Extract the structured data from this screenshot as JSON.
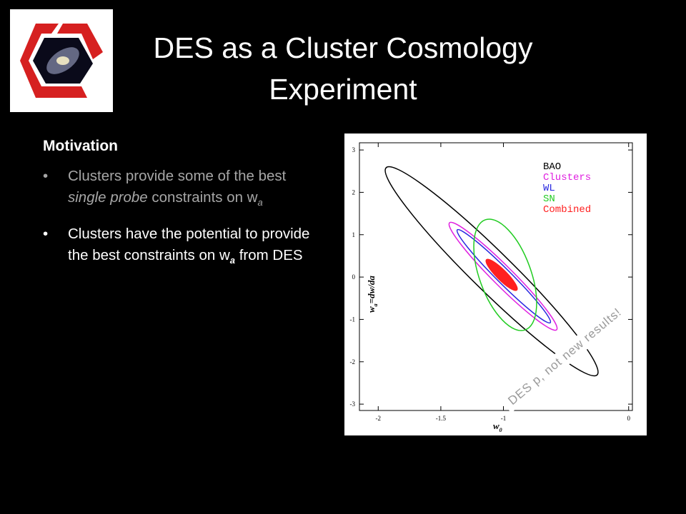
{
  "header": {
    "title": "DES as a Cluster Cosmology Experiment"
  },
  "body": {
    "heading": "Motivation",
    "bullets": [
      {
        "parts": [
          "Clusters provide some of the best ",
          "single probe",
          " constraints on w",
          "a"
        ]
      },
      {
        "parts": [
          "Clusters have the potential to provide the best constraints on w",
          "a",
          " from DES"
        ]
      }
    ]
  },
  "figure": {
    "xlabel": {
      "text": "w",
      "sub": "0"
    },
    "ylabel": {
      "text": "w",
      "sub": "a",
      "rest": "=dw/da"
    },
    "xlim": [
      -2.15,
      0.03
    ],
    "ylim": [
      -3.15,
      3.17
    ],
    "xticks": [
      -2,
      -1.5,
      -1,
      0
    ],
    "yticks": [
      -3,
      -2,
      -1,
      0,
      1,
      2,
      3
    ],
    "legend": [
      {
        "name": "BAO",
        "color": "#000000"
      },
      {
        "name": "Clusters",
        "color": "#e020e0"
      },
      {
        "name": "WL",
        "color": "#2a2ae0"
      },
      {
        "name": "SN",
        "color": "#22cc22"
      },
      {
        "name": "Combined",
        "color": "#ff2020"
      }
    ]
  },
  "stamp": "DES p, not new results!"
}
